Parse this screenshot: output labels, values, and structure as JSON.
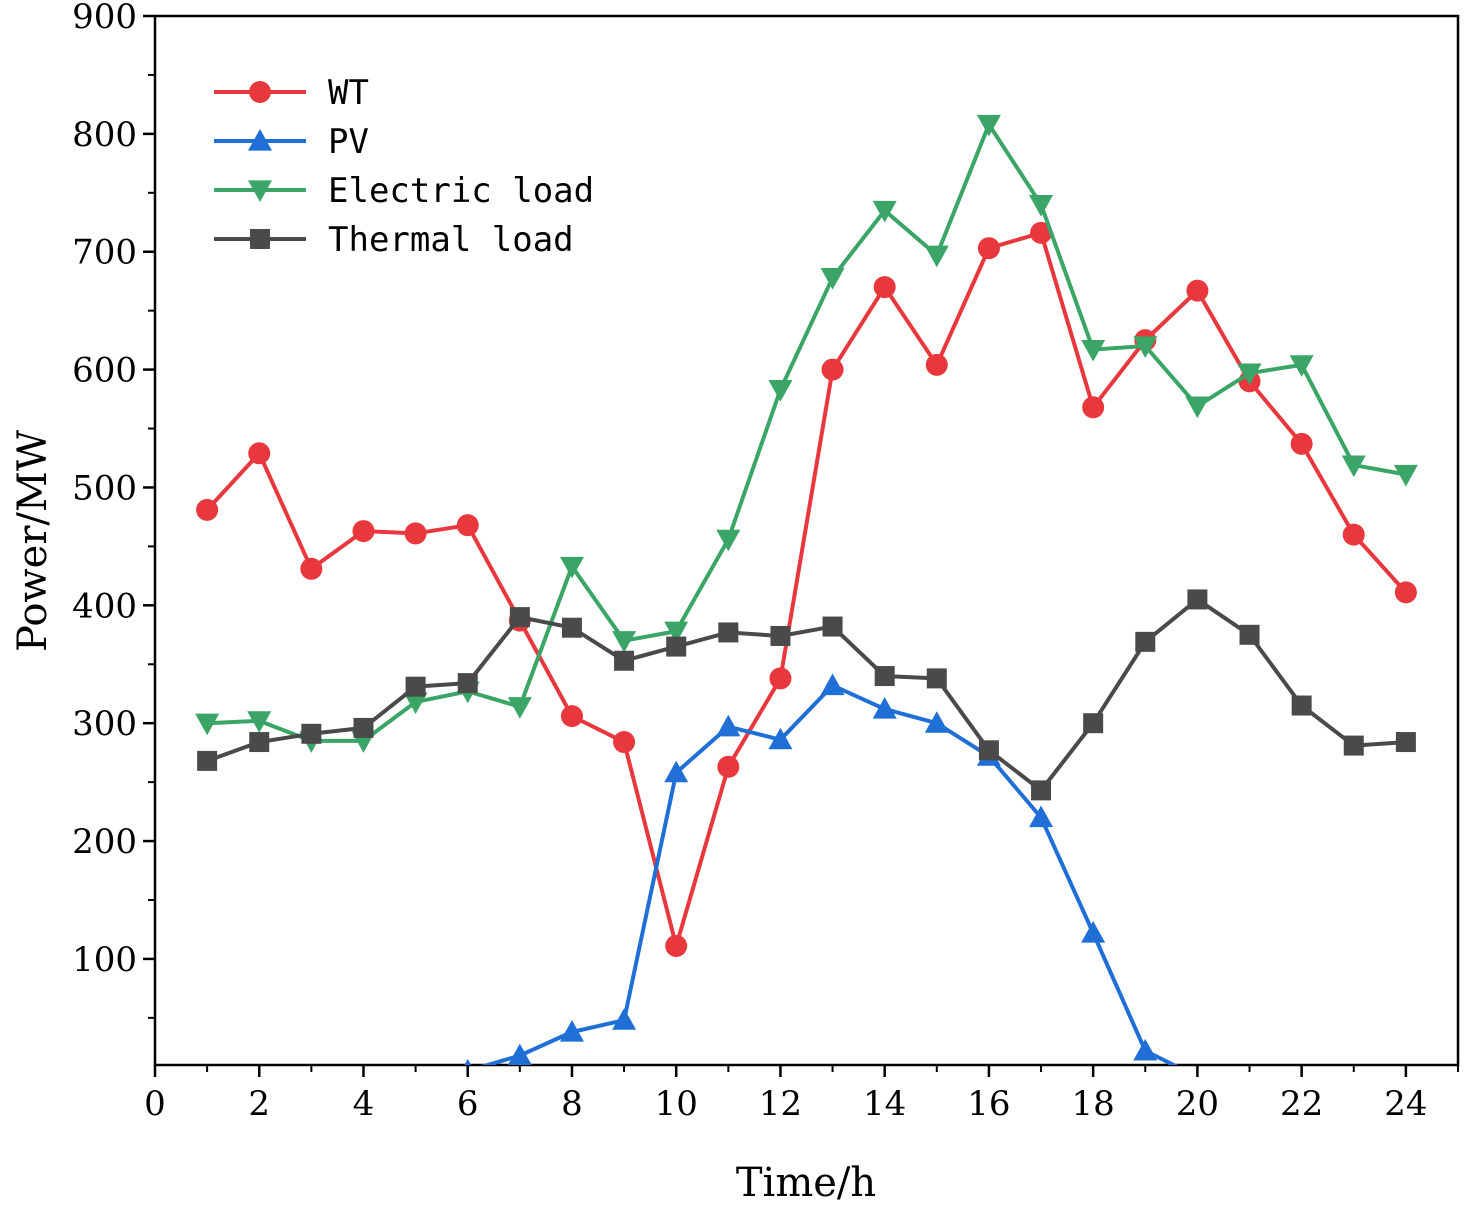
{
  "chart_data": {
    "type": "line",
    "xlabel": "Time/h",
    "ylabel": "Power/MW",
    "xlim": [
      0,
      25
    ],
    "ylim": [
      10,
      900
    ],
    "xticks": [
      "0",
      "2",
      "4",
      "6",
      "8",
      "10",
      "12",
      "14",
      "16",
      "18",
      "20",
      "22",
      "24"
    ],
    "yticks": [
      "100",
      "200",
      "300",
      "400",
      "500",
      "600",
      "700",
      "800",
      "900"
    ],
    "legend_position": "top-left",
    "grid": false,
    "x": [
      1,
      2,
      3,
      4,
      5,
      6,
      7,
      8,
      9,
      10,
      11,
      12,
      13,
      14,
      15,
      16,
      17,
      18,
      19,
      20,
      21,
      22,
      23,
      24
    ],
    "series": [
      {
        "name": "WT",
        "color": "#e8383d",
        "marker": "circle",
        "values": [
          481,
          529,
          431,
          463,
          461,
          468,
          387,
          306,
          284,
          111,
          263,
          338,
          600,
          670,
          604,
          703,
          716,
          568,
          625,
          667,
          590,
          537,
          460,
          411
        ]
      },
      {
        "name": "PV",
        "color": "#1f6fd6",
        "marker": "triangle-up",
        "values": [
          0,
          0,
          0,
          0,
          0,
          5,
          18,
          38,
          48,
          258,
          297,
          286,
          332,
          312,
          300,
          272,
          220,
          122,
          22,
          0,
          0,
          0,
          0,
          0
        ]
      },
      {
        "name": "Electric load",
        "color": "#3aa566",
        "marker": "triangle-down",
        "values": [
          300,
          302,
          285,
          285,
          318,
          327,
          314,
          433,
          370,
          378,
          456,
          583,
          678,
          735,
          697,
          808,
          740,
          617,
          620,
          569,
          597,
          604,
          519,
          511
        ]
      },
      {
        "name": "Thermal load",
        "color": "#4a4a4a",
        "marker": "square",
        "values": [
          268,
          284,
          291,
          296,
          331,
          334,
          390,
          381,
          353,
          365,
          377,
          374,
          382,
          340,
          338,
          277,
          243,
          300,
          369,
          405,
          375,
          315,
          281,
          284
        ]
      }
    ]
  }
}
